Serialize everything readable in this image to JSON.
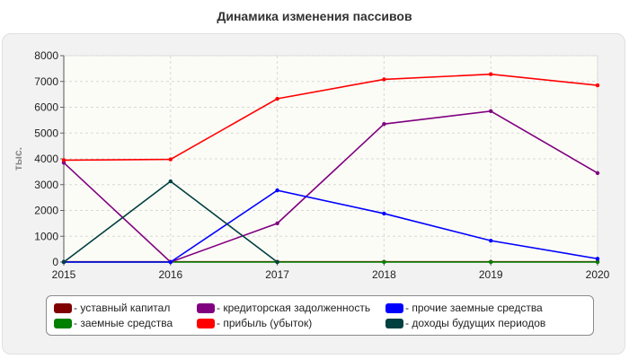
{
  "title": "Динамика изменения пассивов",
  "chart_data": {
    "type": "line",
    "title": "Динамика изменения пассивов",
    "xlabel": "",
    "ylabel": "тыс.",
    "x": [
      "2015",
      "2016",
      "2017",
      "2018",
      "2019",
      "2020"
    ],
    "ylim": [
      0,
      8000
    ],
    "yticks": [
      0,
      1000,
      2000,
      3000,
      4000,
      5000,
      6000,
      7000,
      8000
    ],
    "grid": true,
    "legend_position": "bottom",
    "series": [
      {
        "name": "- уставный капитал",
        "color": "#800000",
        "values": [
          10,
          10,
          10,
          10,
          10,
          10
        ]
      },
      {
        "name": "- заемные средства",
        "color": "#008000",
        "values": [
          0,
          0,
          0,
          0,
          0,
          0
        ]
      },
      {
        "name": "- кредиторская задолженность",
        "color": "#800080",
        "values": [
          3850,
          0,
          1500,
          5350,
          5850,
          3450
        ]
      },
      {
        "name": "- прибыль (убыток)",
        "color": "#ff0000",
        "values": [
          3950,
          3980,
          6330,
          7080,
          7280,
          6850
        ]
      },
      {
        "name": "- прочие заемные средства",
        "color": "#0000ff",
        "values": [
          0,
          0,
          2780,
          1880,
          830,
          130
        ]
      },
      {
        "name": "- доходы будущих периодов",
        "color": "#004040",
        "values": [
          0,
          3130,
          0,
          null,
          null,
          null
        ]
      }
    ]
  }
}
